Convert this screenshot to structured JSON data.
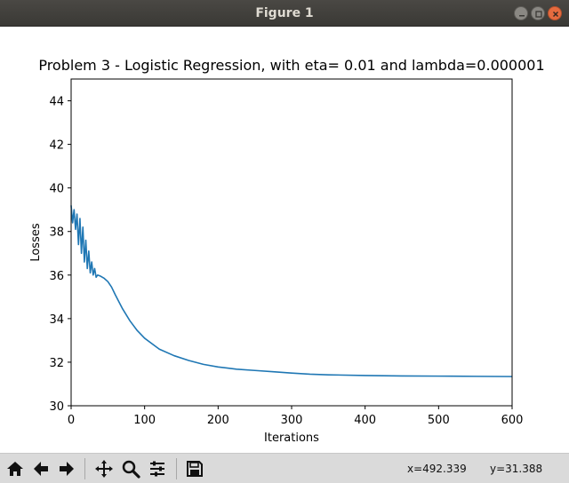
{
  "window": {
    "title": "Figure 1",
    "controls": [
      "minimize-icon",
      "maximize-icon",
      "close-icon"
    ]
  },
  "toolbar": {
    "tools": [
      "home-icon",
      "back-icon",
      "forward-icon",
      "pan-icon",
      "zoom-icon",
      "configure-subplots-icon",
      "save-icon"
    ],
    "coords_x": "x=492.339",
    "coords_y": "y=31.388"
  },
  "chart_data": {
    "type": "line",
    "title": "Problem 3 - Logistic Regression, with eta= 0.01 and lambda=0.000001",
    "xlabel": "Iterations",
    "ylabel": "Losses",
    "xlim": [
      0,
      600
    ],
    "ylim": [
      30,
      45
    ],
    "xticks": [
      "0",
      "100",
      "200",
      "300",
      "400",
      "500",
      "600"
    ],
    "yticks": [
      "30",
      "32",
      "34",
      "36",
      "38",
      "40",
      "42",
      "44"
    ],
    "grid": false,
    "color": "#1f77b4",
    "series": [
      {
        "x": [
          0,
          2,
          4,
          6,
          8,
          10,
          12,
          14,
          16,
          18,
          20,
          22,
          24,
          26,
          28,
          30,
          32,
          34,
          36,
          40,
          45,
          50,
          55,
          60,
          70,
          80,
          90,
          100,
          120,
          140,
          160,
          180,
          200,
          225,
          250,
          275,
          300,
          325,
          350,
          400,
          450,
          500,
          550,
          600
        ],
        "y": [
          39.2,
          38.4,
          39.0,
          38.1,
          38.8,
          37.4,
          38.6,
          37.0,
          38.2,
          36.6,
          37.6,
          36.3,
          37.1,
          36.1,
          36.6,
          36.0,
          36.3,
          35.9,
          36.0,
          35.95,
          35.85,
          35.7,
          35.45,
          35.1,
          34.45,
          33.9,
          33.45,
          33.1,
          32.6,
          32.3,
          32.08,
          31.9,
          31.78,
          31.68,
          31.62,
          31.56,
          31.5,
          31.45,
          31.42,
          31.39,
          31.37,
          31.36,
          31.35,
          31.34
        ]
      }
    ]
  }
}
